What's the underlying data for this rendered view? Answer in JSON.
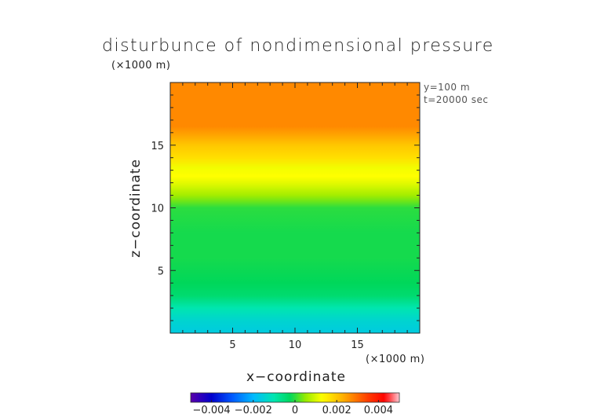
{
  "chart_data": {
    "type": "heatmap",
    "title": "disturbunce of nondimensional pressure",
    "xlabel": "x−coordinate",
    "ylabel": "z−coordinate",
    "x_unit": "(×1000 m)",
    "y_unit": "(×1000 m)",
    "annotations": [
      "y=100  m",
      "t=20000 sec"
    ],
    "xlim": [
      0,
      20
    ],
    "ylim": [
      0,
      20
    ],
    "xticks": [
      5,
      10,
      15
    ],
    "yticks": [
      5,
      10,
      15
    ],
    "field_vs_z": {
      "z": [
        0,
        1,
        2,
        2.5,
        3,
        4,
        6,
        8,
        10,
        10.5,
        11,
        11.8,
        12.5,
        13.2,
        14,
        15,
        15.8,
        16.5,
        18,
        20
      ],
      "value": [
        -0.0016,
        -0.0014,
        -0.001,
        -0.0007,
        -0.0004,
        -0.0002,
        -0.0001,
        -0.0001,
        0.0,
        0.0003,
        0.0006,
        0.001,
        0.0013,
        0.0012,
        0.0017,
        0.002,
        0.0024,
        0.0027,
        0.0027,
        0.0027
      ]
    },
    "colorbar": {
      "range": [
        -0.005,
        0.005
      ],
      "tick_values": [
        -0.004,
        -0.002,
        0,
        0.002,
        0.004
      ],
      "tick_labels": [
        "−0.004",
        "−0.002",
        "0",
        "0.002",
        "0.004"
      ]
    }
  }
}
